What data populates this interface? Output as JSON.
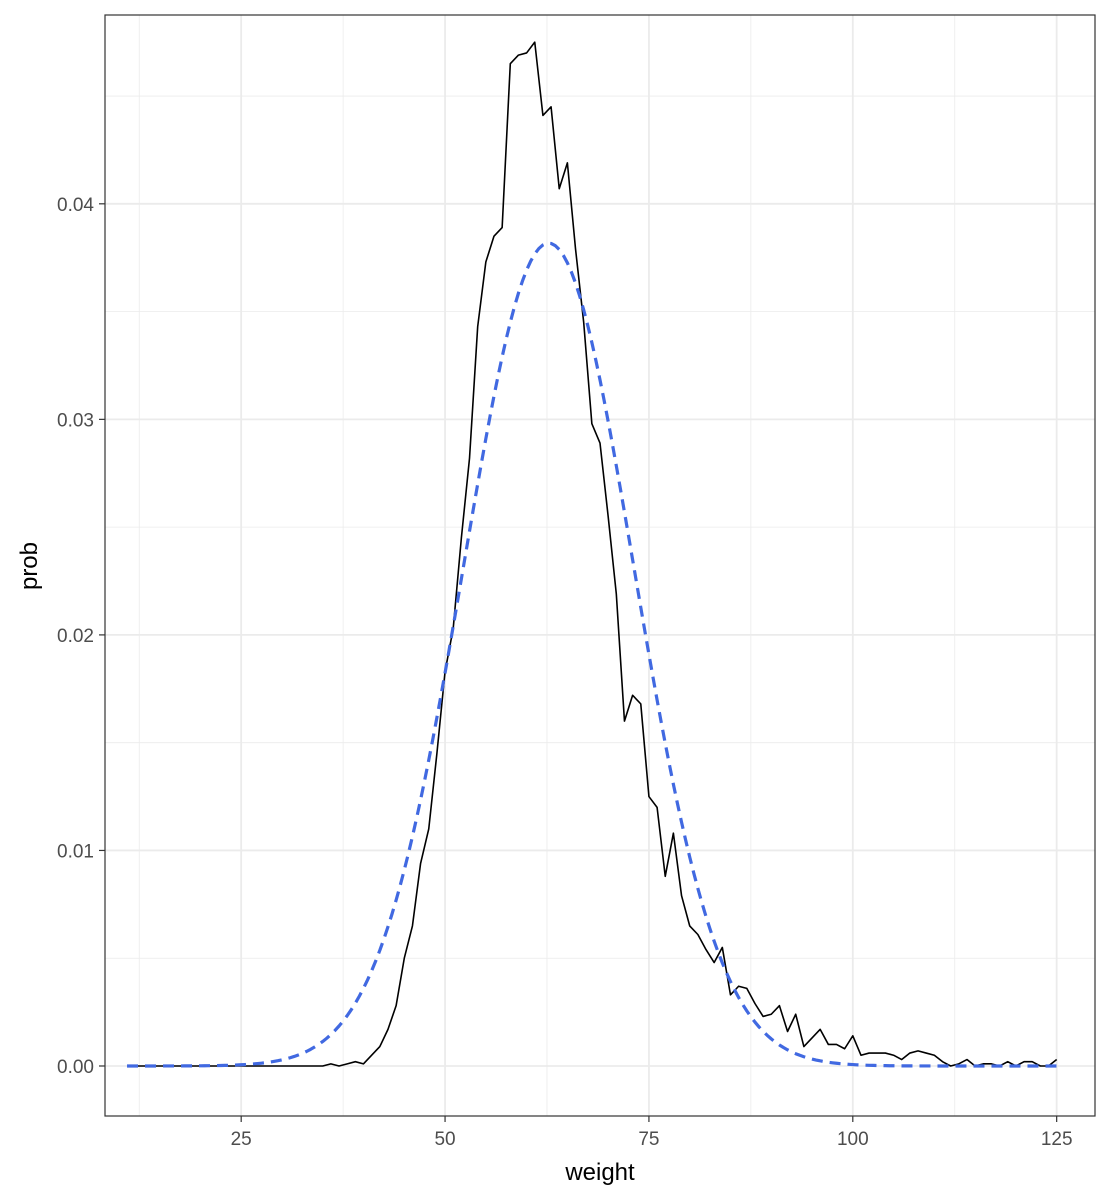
{
  "chart_data": {
    "type": "line",
    "title": "",
    "xlabel": "weight",
    "ylabel": "prob",
    "xlim": [
      8.3,
      129.7
    ],
    "ylim": [
      -0.00232,
      0.04876
    ],
    "x_ticks": [
      25,
      50,
      75,
      100,
      125
    ],
    "x_tick_labels": [
      "25",
      "50",
      "75",
      "100",
      "125"
    ],
    "y_ticks": [
      0,
      0.01,
      0.02,
      0.03,
      0.04
    ],
    "y_tick_labels": [
      "0.00",
      "0.01",
      "0.02",
      "0.03",
      "0.04"
    ],
    "x_minor_ticks": [
      12.5,
      37.5,
      62.5,
      87.5,
      112.5
    ],
    "y_minor_ticks": [
      0.005,
      0.015,
      0.025,
      0.035,
      0.045
    ],
    "grid": true,
    "legend": "none",
    "colors": {
      "empirical": "#000000",
      "normal_fit": "#4169e1",
      "grid": "#ebebeb",
      "panel_border": "#333333"
    },
    "series": [
      {
        "style": "solid",
        "x": [
          12,
          13,
          14,
          15,
          16,
          17,
          18,
          19,
          20,
          21,
          22,
          23,
          24,
          25,
          26,
          27,
          28,
          29,
          30,
          31,
          32,
          33,
          34,
          35,
          36,
          37,
          38,
          39,
          40,
          41,
          42,
          43,
          44,
          45,
          46,
          47,
          48,
          49,
          50,
          51,
          52,
          53,
          54,
          55,
          56,
          57,
          58,
          59,
          60,
          61,
          62,
          63,
          64,
          65,
          66,
          67,
          68,
          69,
          70,
          71,
          72,
          73,
          74,
          75,
          76,
          77,
          78,
          79,
          80,
          81,
          82,
          83,
          84,
          85,
          86,
          87,
          88,
          89,
          90,
          91,
          92,
          93,
          94,
          95,
          96,
          97,
          98,
          99,
          100,
          101,
          102,
          103,
          104,
          105,
          106,
          107,
          108,
          109,
          110,
          111,
          112,
          113,
          114,
          115,
          116,
          117,
          118,
          119,
          120,
          121,
          122,
          123,
          124,
          125
        ],
        "values": [
          0,
          0,
          0,
          0,
          0,
          0,
          0,
          0,
          0,
          0,
          0,
          0,
          0,
          0,
          0,
          0,
          0,
          0,
          0,
          0,
          0,
          0,
          0,
          0,
          0.0001,
          0,
          0.0001,
          0.0002,
          0.0001,
          0.0005,
          0.0009,
          0.0017,
          0.0028,
          0.005,
          0.0065,
          0.0094,
          0.011,
          0.0145,
          0.0183,
          0.0203,
          0.0245,
          0.0282,
          0.0343,
          0.0373,
          0.0385,
          0.0389,
          0.0465,
          0.0469,
          0.047,
          0.0475,
          0.0441,
          0.0445,
          0.0407,
          0.0419,
          0.0379,
          0.0345,
          0.0298,
          0.0289,
          0.0255,
          0.0219,
          0.016,
          0.0172,
          0.0168,
          0.0125,
          0.012,
          0.0088,
          0.0108,
          0.0079,
          0.0065,
          0.0061,
          0.0054,
          0.0048,
          0.0055,
          0.0033,
          0.0037,
          0.0036,
          0.0029,
          0.0023,
          0.0024,
          0.0028,
          0.0016,
          0.0024,
          0.0009,
          0.0013,
          0.0017,
          0.001,
          0.001,
          0.0008,
          0.0014,
          0.0005,
          0.0006,
          0.0006,
          0.0006,
          0.0005,
          0.0003,
          0.0006,
          0.0007,
          0.0006,
          0.0005,
          0.0002,
          0,
          0.0001,
          0.0003,
          0,
          0.0001,
          0.0001,
          0,
          0.0002,
          0,
          0.0002,
          0.0002,
          0,
          0,
          0.0003
        ]
      },
      {
        "style": "dashed",
        "distribution": "normal",
        "mean": 62.7,
        "sd": 10.45,
        "x_range": [
          11,
          125
        ],
        "step": 0.5
      }
    ]
  }
}
